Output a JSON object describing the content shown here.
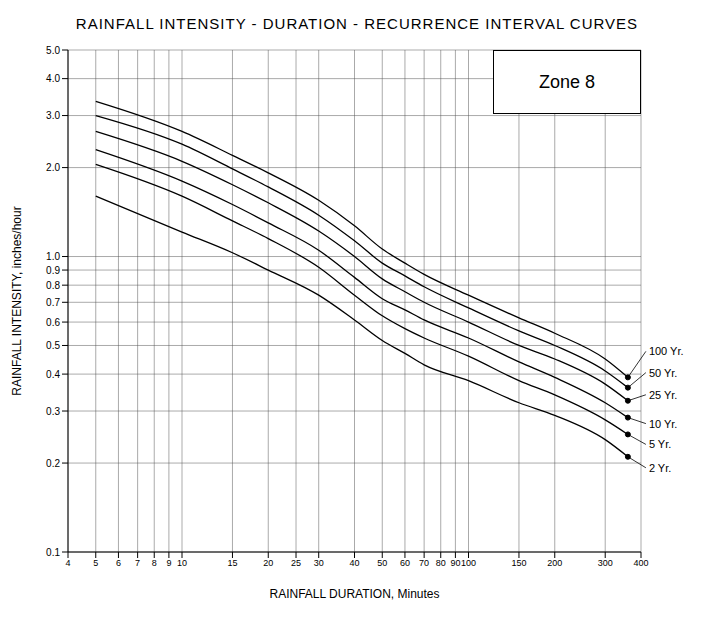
{
  "chart_data": {
    "type": "line",
    "title": "RAINFALL INTENSITY - DURATION - RECURRENCE INTERVAL CURVES",
    "annotation": "Zone 8",
    "x_label": "RAINFALL DURATION, Minutes",
    "y_label": "RAINFALL INTENSITY, inches/hour",
    "log": true,
    "grid": true,
    "x": [
      5,
      10,
      15,
      20,
      30,
      40,
      50,
      60,
      70,
      100,
      150,
      200,
      300,
      360
    ],
    "xlim": [
      4,
      400
    ],
    "xticks": [
      4,
      5,
      6,
      7,
      8,
      9,
      10,
      15,
      20,
      25,
      30,
      40,
      50,
      60,
      70,
      80,
      90,
      100,
      150,
      200,
      300,
      400
    ],
    "ylim": [
      0.1,
      5
    ],
    "yticks": [
      0.1,
      0.2,
      0.3,
      0.4,
      0.5,
      0.6,
      0.7,
      0.8,
      0.9,
      {
        "value": 1,
        "label": "1.0"
      },
      {
        "value": 2,
        "label": "2.0"
      },
      {
        "value": 3,
        "label": "3.0"
      },
      {
        "value": 4,
        "label": "4.0"
      },
      {
        "value": 5,
        "label": "5.0"
      }
    ],
    "series": [
      {
        "name": "2 Yr.",
        "color": "#000000",
        "values": [
          1.6,
          1.21,
          1.03,
          0.9,
          0.74,
          0.61,
          0.52,
          0.47,
          0.43,
          0.38,
          0.32,
          0.29,
          0.24,
          0.21
        ]
      },
      {
        "name": "5 Yr.",
        "color": "#000000",
        "values": [
          2.05,
          1.6,
          1.32,
          1.15,
          0.92,
          0.74,
          0.63,
          0.57,
          0.53,
          0.46,
          0.38,
          0.34,
          0.28,
          0.25
        ]
      },
      {
        "name": "10 Yr.",
        "color": "#000000",
        "values": [
          2.3,
          1.8,
          1.5,
          1.3,
          1.05,
          0.85,
          0.72,
          0.66,
          0.61,
          0.53,
          0.44,
          0.39,
          0.32,
          0.285
        ]
      },
      {
        "name": "25 Yr.",
        "color": "#000000",
        "values": [
          2.65,
          2.1,
          1.75,
          1.52,
          1.22,
          1.0,
          0.84,
          0.76,
          0.7,
          0.6,
          0.5,
          0.45,
          0.37,
          0.325
        ]
      },
      {
        "name": "50 Yr.",
        "color": "#000000",
        "values": [
          3.0,
          2.4,
          1.98,
          1.72,
          1.38,
          1.13,
          0.95,
          0.86,
          0.79,
          0.67,
          0.56,
          0.5,
          0.41,
          0.36
        ]
      },
      {
        "name": "100 Yr.",
        "color": "#000000",
        "values": [
          3.35,
          2.65,
          2.2,
          1.92,
          1.55,
          1.27,
          1.06,
          0.95,
          0.87,
          0.74,
          0.62,
          0.55,
          0.45,
          0.39
        ]
      }
    ]
  }
}
